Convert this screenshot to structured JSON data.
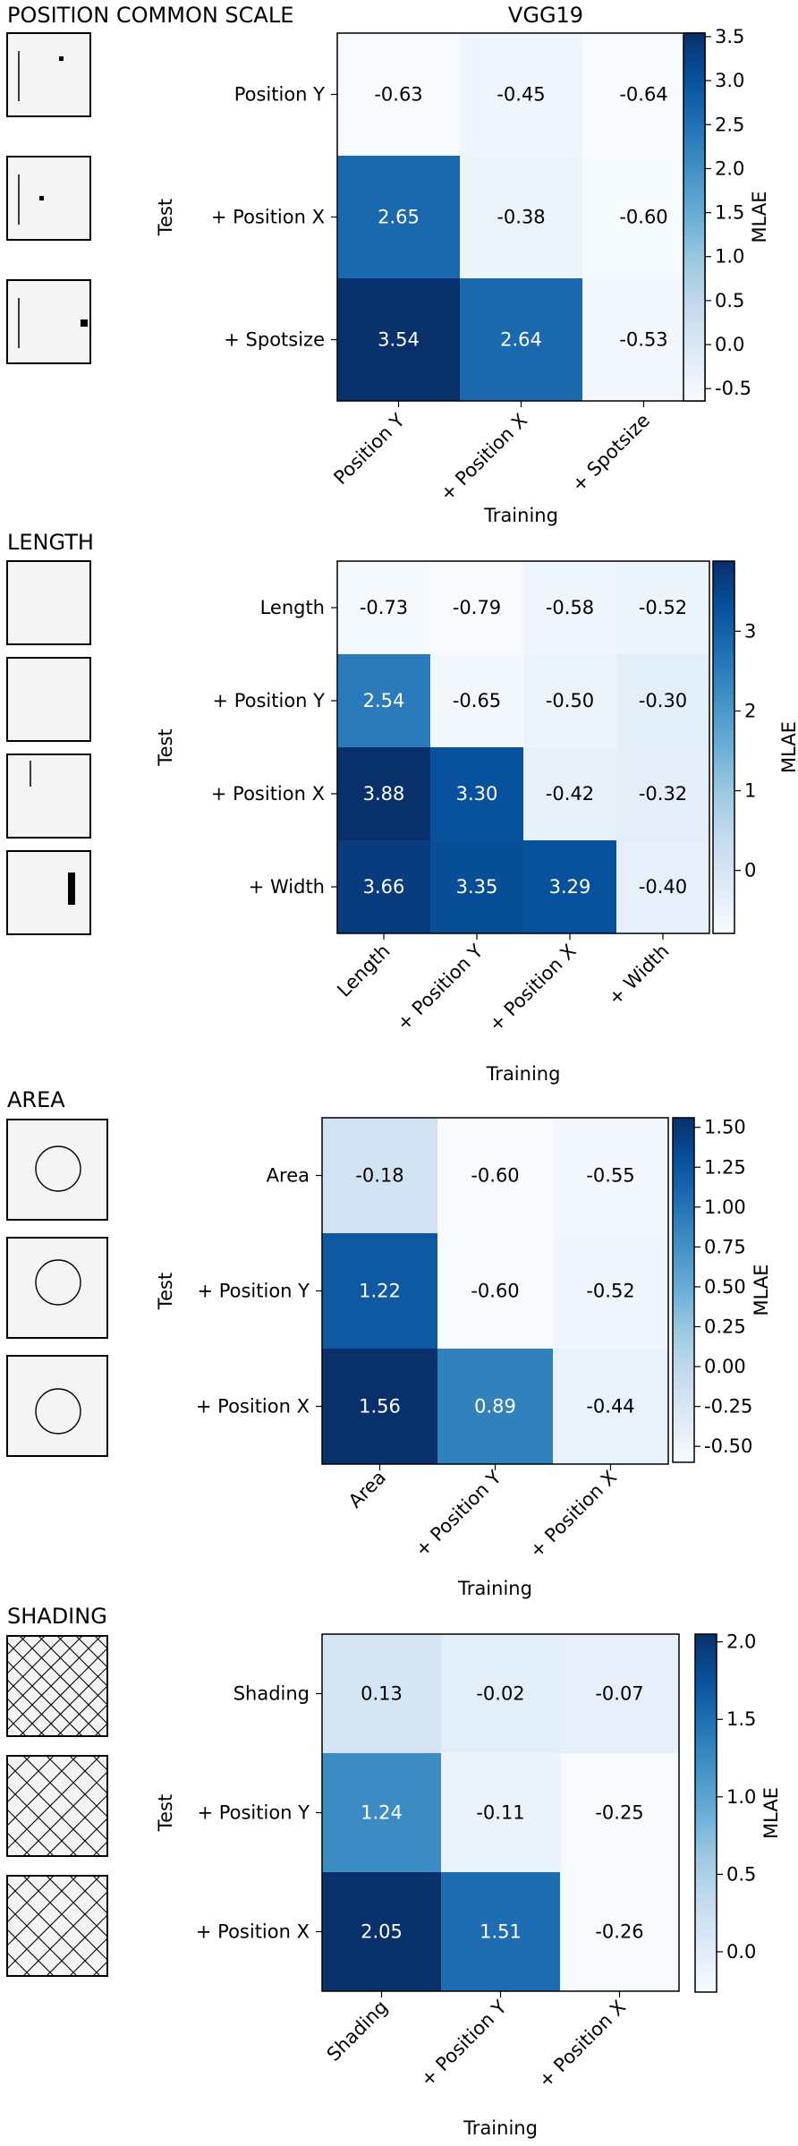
{
  "header": {
    "section_title": "POSITION COMMON SCALE",
    "model_title": "VGG19"
  },
  "colormap": [
    "#f7fbff",
    "#deebf7",
    "#c6dbef",
    "#9ecae1",
    "#6baed6",
    "#4292c6",
    "#2171b5",
    "#08519c",
    "#08306b"
  ],
  "chart_data": [
    {
      "type": "heatmap",
      "section": "POSITION COMMON SCALE",
      "title": "VGG19",
      "xlabel": "Training",
      "ylabel": "Test",
      "colorbar_label": "MLAE",
      "x_categories": [
        "Position Y",
        "+ Position X",
        "+ Spotsize"
      ],
      "y_categories": [
        "Position Y",
        "+ Position X",
        "+ Spotsize"
      ],
      "values": [
        [
          -0.63,
          -0.45,
          -0.64
        ],
        [
          2.65,
          -0.38,
          -0.6
        ],
        [
          3.54,
          2.64,
          -0.53
        ]
      ],
      "cell_labels": [
        [
          "-0.63",
          "-0.45",
          "-0.64"
        ],
        [
          "2.65",
          "-0.38",
          "-0.60"
        ],
        [
          "3.54",
          "2.64",
          "-0.53"
        ]
      ],
      "vmin": -0.64,
      "vmax": 3.54,
      "colorbar_ticks": [
        -0.5,
        0.0,
        0.5,
        1.0,
        1.5,
        2.0,
        2.5,
        3.0,
        3.5
      ],
      "colorbar_tick_labels": [
        "-0.5",
        "0.0",
        "0.5",
        "1.0",
        "1.5",
        "2.0",
        "2.5",
        "3.0",
        "3.5"
      ],
      "thumbnails": [
        {
          "kind": "position",
          "line": true,
          "dot": "small",
          "dot_pos": "upper-right"
        },
        {
          "kind": "position",
          "line": true,
          "dot": "small",
          "dot_pos": "upper-left"
        },
        {
          "kind": "position",
          "line": true,
          "dot": "large",
          "dot_pos": "middle-right"
        }
      ]
    },
    {
      "type": "heatmap",
      "section": "LENGTH",
      "title": "",
      "xlabel": "Training",
      "ylabel": "Test",
      "colorbar_label": "MLAE",
      "x_categories": [
        "Length",
        "+ Position Y",
        "+ Position X",
        "+ Width"
      ],
      "y_categories": [
        "Length",
        "+ Position Y",
        "+ Position X",
        "+ Width"
      ],
      "values": [
        [
          -0.73,
          -0.79,
          -0.58,
          -0.52
        ],
        [
          2.54,
          -0.65,
          -0.5,
          -0.3
        ],
        [
          3.88,
          3.3,
          -0.42,
          -0.32
        ],
        [
          3.66,
          3.35,
          3.29,
          -0.4
        ]
      ],
      "cell_labels": [
        [
          "-0.73",
          "-0.79",
          "-0.58",
          "-0.52"
        ],
        [
          "2.54",
          "-0.65",
          "-0.50",
          "-0.30"
        ],
        [
          "3.88",
          "3.30",
          "-0.42",
          "-0.32"
        ],
        [
          "3.66",
          "3.35",
          "3.29",
          "-0.40"
        ]
      ],
      "vmin": -0.79,
      "vmax": 3.88,
      "colorbar_ticks": [
        0,
        1,
        2,
        3
      ],
      "colorbar_tick_labels": [
        "0",
        "1",
        "2",
        "3"
      ],
      "thumbnails": [
        {
          "kind": "length",
          "bar": "none"
        },
        {
          "kind": "length",
          "bar": "none"
        },
        {
          "kind": "length",
          "bar": "thin-line"
        },
        {
          "kind": "length",
          "bar": "thick-bar"
        }
      ]
    },
    {
      "type": "heatmap",
      "section": "AREA",
      "title": "",
      "xlabel": "Training",
      "ylabel": "Test",
      "colorbar_label": "MLAE",
      "x_categories": [
        "Area",
        "+ Position Y",
        "+ Position X"
      ],
      "y_categories": [
        "Area",
        "+ Position Y",
        "+ Position X"
      ],
      "values": [
        [
          -0.18,
          -0.6,
          -0.55
        ],
        [
          1.22,
          -0.6,
          -0.52
        ],
        [
          1.56,
          0.89,
          -0.44
        ]
      ],
      "cell_labels": [
        [
          "-0.18",
          "-0.60",
          "-0.55"
        ],
        [
          "1.22",
          "-0.60",
          "-0.52"
        ],
        [
          "1.56",
          "0.89",
          "-0.44"
        ]
      ],
      "vmin": -0.6,
      "vmax": 1.56,
      "colorbar_ticks": [
        -0.5,
        -0.25,
        0.0,
        0.25,
        0.5,
        0.75,
        1.0,
        1.25,
        1.5
      ],
      "colorbar_tick_labels": [
        "-0.50",
        "-0.25",
        "0.00",
        "0.25",
        "0.50",
        "0.75",
        "1.00",
        "1.25",
        "1.50"
      ],
      "thumbnails": [
        {
          "kind": "circle",
          "pos": "center"
        },
        {
          "kind": "circle",
          "pos": "center-up"
        },
        {
          "kind": "circle",
          "pos": "center-down"
        }
      ]
    },
    {
      "type": "heatmap",
      "section": "SHADING",
      "title": "",
      "xlabel": "Training",
      "ylabel": "Test",
      "colorbar_label": "MLAE",
      "x_categories": [
        "Shading",
        "+ Position Y",
        "+ Position X"
      ],
      "y_categories": [
        "Shading",
        "+ Position Y",
        "+ Position X"
      ],
      "values": [
        [
          0.13,
          -0.02,
          -0.07
        ],
        [
          1.24,
          -0.11,
          -0.25
        ],
        [
          2.05,
          1.51,
          -0.26
        ]
      ],
      "cell_labels": [
        [
          "0.13",
          "-0.02",
          "-0.07"
        ],
        [
          "1.24",
          "-0.11",
          "-0.25"
        ],
        [
          "2.05",
          "1.51",
          "-0.26"
        ]
      ],
      "vmin": -0.26,
      "vmax": 2.05,
      "colorbar_ticks": [
        0.0,
        0.5,
        1.0,
        1.5,
        2.0
      ],
      "colorbar_tick_labels": [
        "0.0",
        "0.5",
        "1.0",
        "1.5",
        "2.0"
      ],
      "thumbnails": [
        {
          "kind": "hatch",
          "density": "medium"
        },
        {
          "kind": "hatch",
          "density": "coarse"
        },
        {
          "kind": "hatch",
          "density": "coarse"
        }
      ]
    }
  ]
}
